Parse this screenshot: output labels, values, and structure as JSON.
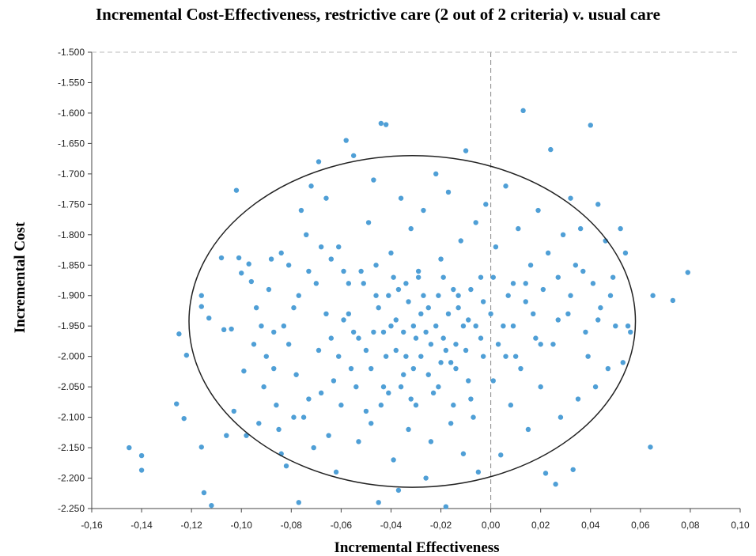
{
  "chart_data": {
    "type": "scatter",
    "title": "Incremental Cost-Effectiveness, restrictive care (2 out of 2 criteria) v. usual care",
    "xlabel": "Incremental Effectiveness",
    "ylabel": "Incremental Cost",
    "xlim": [
      -0.16,
      0.1
    ],
    "ylim": [
      -2.25,
      -1.5
    ],
    "x_ticks": [
      -0.16,
      -0.14,
      -0.12,
      -0.1,
      -0.08,
      -0.06,
      -0.04,
      -0.02,
      0.0,
      0.02,
      0.04,
      0.06,
      0.08,
      0.1
    ],
    "x_tick_labels": [
      "-0,16",
      "-0,14",
      "-0,12",
      "-0,10",
      "-0,08",
      "-0,06",
      "-0,04",
      "-0,02",
      "0,00",
      "0,02",
      "0,04",
      "0,06",
      "0,08",
      "0,10"
    ],
    "y_ticks": [
      -1.5,
      -1.55,
      -1.6,
      -1.65,
      -1.7,
      -1.75,
      -1.8,
      -1.85,
      -1.9,
      -1.95,
      -2.0,
      -2.05,
      -2.1,
      -2.15,
      -2.2,
      -2.25
    ],
    "y_tick_labels": [
      "-1.500",
      "-1.550",
      "-1.600",
      "-1.650",
      "-1.700",
      "-1.750",
      "-1.800",
      "-1.850",
      "-1.900",
      "-1.950",
      "-2.000",
      "-2.050",
      "-2.100",
      "-2.150",
      "-2.200",
      "-2.250"
    ],
    "grid": false,
    "reference_lines": {
      "x": 0.0,
      "y": -1.5,
      "style": "dashed"
    },
    "point_color": "#4f9fd6",
    "confidence_ellipse": {
      "center_x": -0.0315,
      "center_y": -1.9425,
      "semi_axis_x": 0.0895,
      "semi_axis_y": 0.2725,
      "color": "#222222"
    },
    "points": [
      [
        -0.145,
        -2.15
      ],
      [
        -0.14,
        -2.163
      ],
      [
        -0.14,
        -2.187
      ],
      [
        -0.126,
        -2.078
      ],
      [
        -0.125,
        -1.963
      ],
      [
        -0.123,
        -2.102
      ],
      [
        -0.122,
        -1.998
      ],
      [
        -0.116,
        -2.149
      ],
      [
        -0.115,
        -2.224
      ],
      [
        -0.112,
        -2.245
      ],
      [
        -0.116,
        -1.918
      ],
      [
        -0.116,
        -1.9
      ],
      [
        -0.113,
        -1.937
      ],
      [
        -0.108,
        -1.838
      ],
      [
        -0.107,
        -1.956
      ],
      [
        -0.104,
        -1.955
      ],
      [
        -0.102,
        -1.727
      ],
      [
        -0.101,
        -1.838
      ],
      [
        -0.1,
        -1.863
      ],
      [
        -0.099,
        -2.024
      ],
      [
        -0.097,
        -1.848
      ],
      [
        -0.096,
        -1.877
      ],
      [
        -0.094,
        -1.92
      ],
      [
        -0.092,
        -1.95
      ],
      [
        -0.09,
        -2.0
      ],
      [
        -0.089,
        -1.89
      ],
      [
        -0.087,
        -1.96
      ],
      [
        -0.086,
        -2.08
      ],
      [
        -0.085,
        -2.12
      ],
      [
        -0.084,
        -2.16
      ],
      [
        -0.084,
        -1.83
      ],
      [
        -0.082,
        -2.18
      ],
      [
        -0.081,
        -1.85
      ],
      [
        -0.079,
        -1.92
      ],
      [
        -0.078,
        -2.03
      ],
      [
        -0.077,
        -2.24
      ],
      [
        -0.076,
        -1.76
      ],
      [
        -0.075,
        -2.1
      ],
      [
        -0.074,
        -1.8
      ],
      [
        -0.072,
        -1.72
      ],
      [
        -0.071,
        -2.15
      ],
      [
        -0.07,
        -1.88
      ],
      [
        -0.069,
        -1.68
      ],
      [
        -0.068,
        -2.06
      ],
      [
        -0.066,
        -1.74
      ],
      [
        -0.065,
        -2.13
      ],
      [
        -0.064,
        -1.97
      ],
      [
        -0.062,
        -2.19
      ],
      [
        -0.061,
        -1.82
      ],
      [
        -0.06,
        -2.08
      ],
      [
        -0.058,
        -1.645
      ],
      [
        -0.057,
        -1.93
      ],
      [
        -0.056,
        -2.02
      ],
      [
        -0.055,
        -1.67
      ],
      [
        -0.053,
        -2.14
      ],
      [
        -0.052,
        -1.86
      ],
      [
        -0.05,
        -1.99
      ],
      [
        -0.049,
        -1.78
      ],
      [
        -0.048,
        -2.11
      ],
      [
        -0.047,
        -1.71
      ],
      [
        -0.046,
        -1.9
      ],
      [
        -0.045,
        -2.24
      ],
      [
        -0.044,
        -1.617
      ],
      [
        -0.043,
        -1.96
      ],
      [
        -0.042,
        -1.619
      ],
      [
        -0.041,
        -2.06
      ],
      [
        -0.04,
        -1.83
      ],
      [
        -0.039,
        -2.17
      ],
      [
        -0.038,
        -1.94
      ],
      [
        -0.037,
        -2.22
      ],
      [
        -0.036,
        -1.74
      ],
      [
        -0.035,
        -2.03
      ],
      [
        -0.034,
        -1.88
      ],
      [
        -0.033,
        -2.12
      ],
      [
        -0.032,
        -1.79
      ],
      [
        -0.031,
        -1.95
      ],
      [
        -0.03,
        -2.08
      ],
      [
        -0.029,
        -1.86
      ],
      [
        -0.028,
        -2.0
      ],
      [
        -0.027,
        -1.76
      ],
      [
        -0.026,
        -2.2
      ],
      [
        -0.025,
        -1.92
      ],
      [
        -0.024,
        -2.14
      ],
      [
        -0.022,
        -1.7
      ],
      [
        -0.021,
        -2.05
      ],
      [
        -0.02,
        -1.84
      ],
      [
        -0.019,
        -1.97
      ],
      [
        -0.018,
        -2.247
      ],
      [
        -0.017,
        -1.73
      ],
      [
        -0.016,
        -2.11
      ],
      [
        -0.015,
        -1.89
      ],
      [
        -0.014,
        -2.02
      ],
      [
        -0.012,
        -1.81
      ],
      [
        -0.011,
        -2.16
      ],
      [
        -0.01,
        -1.662
      ],
      [
        -0.009,
        -1.94
      ],
      [
        -0.008,
        -2.07
      ],
      [
        -0.006,
        -1.78
      ],
      [
        -0.005,
        -2.19
      ],
      [
        -0.004,
        -1.87
      ],
      [
        -0.003,
        -2.0
      ],
      [
        -0.002,
        -1.75
      ],
      [
        0.0,
        -1.93
      ],
      [
        0.001,
        -2.04
      ],
      [
        0.002,
        -1.82
      ],
      [
        0.004,
        -2.162
      ],
      [
        0.005,
        -1.95
      ],
      [
        0.006,
        -1.72
      ],
      [
        0.008,
        -2.08
      ],
      [
        0.009,
        -1.88
      ],
      [
        0.01,
        -2.0
      ],
      [
        0.011,
        -1.79
      ],
      [
        0.013,
        -1.596
      ],
      [
        0.014,
        -1.91
      ],
      [
        0.015,
        -2.12
      ],
      [
        0.016,
        -1.85
      ],
      [
        0.018,
        -1.97
      ],
      [
        0.019,
        -1.76
      ],
      [
        0.02,
        -2.05
      ],
      [
        0.021,
        -1.89
      ],
      [
        0.022,
        -2.192
      ],
      [
        0.023,
        -1.83
      ],
      [
        0.024,
        -1.66
      ],
      [
        0.025,
        -1.98
      ],
      [
        0.026,
        -2.21
      ],
      [
        0.027,
        -1.87
      ],
      [
        0.028,
        -2.1
      ],
      [
        0.029,
        -1.8
      ],
      [
        0.031,
        -1.93
      ],
      [
        0.032,
        -1.74
      ],
      [
        0.033,
        -2.186
      ],
      [
        0.034,
        -1.85
      ],
      [
        0.035,
        -2.07
      ],
      [
        0.036,
        -1.79
      ],
      [
        0.038,
        -1.96
      ],
      [
        0.039,
        -2.0
      ],
      [
        0.04,
        -1.62
      ],
      [
        0.041,
        -1.88
      ],
      [
        0.042,
        -2.05
      ],
      [
        0.043,
        -1.75
      ],
      [
        0.044,
        -1.92
      ],
      [
        0.046,
        -1.81
      ],
      [
        0.047,
        -2.02
      ],
      [
        0.049,
        -1.87
      ],
      [
        0.05,
        -1.95
      ],
      [
        0.052,
        -1.79
      ],
      [
        0.053,
        -2.01
      ],
      [
        0.054,
        -1.83
      ],
      [
        0.055,
        -1.95
      ],
      [
        0.056,
        -1.96
      ],
      [
        0.064,
        -2.149
      ],
      [
        0.065,
        -1.9
      ],
      [
        0.073,
        -1.908
      ],
      [
        0.079,
        -1.862
      ],
      [
        -0.088,
        -1.84
      ],
      [
        -0.083,
        -1.95
      ],
      [
        -0.079,
        -2.1
      ],
      [
        -0.073,
        -1.86
      ],
      [
        -0.069,
        -1.99
      ],
      [
        -0.064,
        -1.84
      ],
      [
        -0.059,
        -1.94
      ],
      [
        -0.054,
        -2.05
      ],
      [
        -0.051,
        -1.88
      ],
      [
        -0.047,
        -1.96
      ],
      [
        -0.044,
        -2.08
      ],
      [
        -0.041,
        -1.9
      ],
      [
        -0.038,
        -1.99
      ],
      [
        -0.036,
        -2.05
      ],
      [
        -0.033,
        -1.91
      ],
      [
        -0.031,
        -2.02
      ],
      [
        -0.029,
        -1.87
      ],
      [
        -0.026,
        -1.96
      ],
      [
        -0.023,
        -2.06
      ],
      [
        -0.021,
        -1.9
      ],
      [
        -0.018,
        -1.99
      ],
      [
        -0.015,
        -2.08
      ],
      [
        -0.013,
        -1.92
      ],
      [
        -0.01,
        -1.99
      ],
      [
        -0.007,
        -2.1
      ],
      [
        -0.003,
        -1.91
      ],
      [
        0.003,
        -1.98
      ],
      [
        0.007,
        -1.9
      ],
      [
        0.012,
        -2.02
      ],
      [
        0.017,
        -1.93
      ],
      [
        -0.066,
        -1.93
      ],
      [
        -0.061,
        -2.0
      ],
      [
        -0.057,
        -1.88
      ],
      [
        -0.053,
        -1.97
      ],
      [
        -0.048,
        -2.02
      ],
      [
        -0.045,
        -1.92
      ],
      [
        -0.042,
        -2.0
      ],
      [
        -0.039,
        -1.87
      ],
      [
        -0.035,
        -1.96
      ],
      [
        -0.032,
        -2.07
      ],
      [
        -0.028,
        -1.93
      ],
      [
        -0.025,
        -2.03
      ],
      [
        -0.022,
        -1.95
      ],
      [
        -0.019,
        -1.87
      ],
      [
        -0.016,
        -2.01
      ],
      [
        -0.013,
        -1.9
      ],
      [
        -0.009,
        -2.04
      ],
      [
        -0.006,
        -1.95
      ],
      [
        -0.091,
        -2.05
      ],
      [
        -0.095,
        -1.98
      ],
      [
        -0.103,
        -2.09
      ],
      [
        -0.106,
        -2.13
      ],
      [
        -0.098,
        -2.13
      ],
      [
        -0.093,
        -2.11
      ],
      [
        -0.087,
        -2.02
      ],
      [
        -0.081,
        -1.98
      ],
      [
        -0.077,
        -1.9
      ],
      [
        -0.073,
        -2.07
      ],
      [
        -0.068,
        -1.82
      ],
      [
        -0.063,
        -2.04
      ],
      [
        -0.059,
        -1.86
      ],
      [
        -0.055,
        -1.96
      ],
      [
        -0.05,
        -2.09
      ],
      [
        -0.046,
        -1.85
      ],
      [
        -0.043,
        -2.05
      ],
      [
        -0.04,
        -1.95
      ],
      [
        -0.037,
        -1.89
      ],
      [
        -0.034,
        -2.0
      ],
      [
        -0.03,
        -1.97
      ],
      [
        -0.027,
        -1.9
      ],
      [
        -0.024,
        -1.98
      ],
      [
        -0.02,
        -2.01
      ],
      [
        -0.017,
        -1.93
      ],
      [
        -0.014,
        -1.98
      ],
      [
        -0.011,
        -1.95
      ],
      [
        -0.008,
        -1.89
      ],
      [
        -0.004,
        -1.97
      ],
      [
        0.001,
        -1.87
      ],
      [
        0.006,
        -2.0
      ],
      [
        0.009,
        -1.95
      ],
      [
        0.014,
        -1.88
      ],
      [
        0.02,
        -1.98
      ],
      [
        0.027,
        -1.94
      ],
      [
        0.032,
        -1.9
      ],
      [
        0.037,
        -1.86
      ],
      [
        0.043,
        -1.94
      ],
      [
        0.048,
        -1.9
      ]
    ]
  }
}
